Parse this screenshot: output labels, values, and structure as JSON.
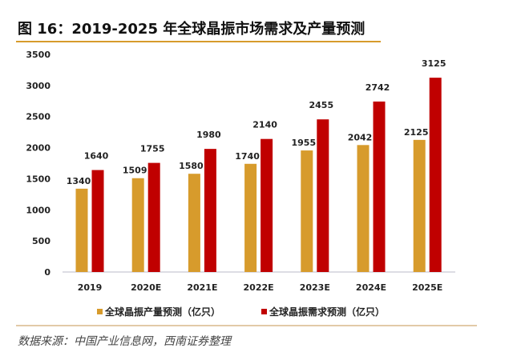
{
  "chart_data": {
    "type": "bar",
    "title": "图 16：2019-2025 年全球晶振市场需求及产量预测",
    "categories": [
      "2019",
      "2020E",
      "2021E",
      "2022E",
      "2023E",
      "2024E",
      "2025E"
    ],
    "series": [
      {
        "name": "全球晶振产量预测（亿只）",
        "color": "#D79B2C",
        "values": [
          1340,
          1509,
          1580,
          1740,
          1955,
          2042,
          2125
        ]
      },
      {
        "name": "全球晶振需求预测（亿只）",
        "color": "#C00000",
        "values": [
          1640,
          1755,
          1980,
          2140,
          2455,
          2742,
          3125
        ]
      }
    ],
    "ylim": [
      0,
      3500
    ],
    "yticks": [
      "0",
      "500",
      "1000",
      "1500",
      "2000",
      "2500",
      "3000",
      "3500"
    ],
    "xlabel": "",
    "ylabel": "",
    "grid": false,
    "legend_position": "bottom",
    "source": "数据来源：中国产业信息网，西南证券整理"
  }
}
